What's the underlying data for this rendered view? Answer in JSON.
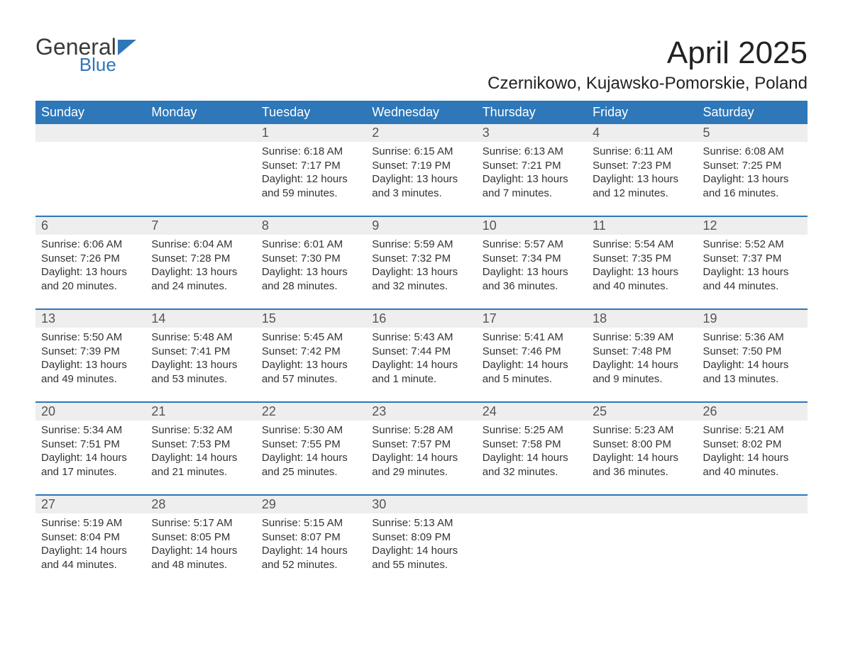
{
  "brand": {
    "general": "General",
    "blue": "Blue",
    "general_color": "#3a3a3a",
    "blue_color": "#2e77b8",
    "triangle_color": "#2e77b8"
  },
  "title": {
    "month": "April 2025",
    "location": "Czernikowo, Kujawsko-Pomorskie, Poland",
    "month_fontsize": 44,
    "location_fontsize": 24,
    "color": "#222222"
  },
  "colors": {
    "header_bg": "#2e77b8",
    "header_text": "#ffffff",
    "daynum_bg": "#eeeeee",
    "daynum_text": "#555555",
    "body_text": "#333333",
    "week_divider": "#2e77b8",
    "page_bg": "#ffffff"
  },
  "fonts": {
    "weekday_size": 18,
    "daynum_size": 18,
    "body_size": 15
  },
  "weekdays": [
    "Sunday",
    "Monday",
    "Tuesday",
    "Wednesday",
    "Thursday",
    "Friday",
    "Saturday"
  ],
  "weeks": [
    {
      "days": [
        {
          "num": "",
          "sunrise": "",
          "sunset": "",
          "daylight": ""
        },
        {
          "num": "",
          "sunrise": "",
          "sunset": "",
          "daylight": ""
        },
        {
          "num": "1",
          "sunrise": "Sunrise: 6:18 AM",
          "sunset": "Sunset: 7:17 PM",
          "daylight": "Daylight: 12 hours and 59 minutes."
        },
        {
          "num": "2",
          "sunrise": "Sunrise: 6:15 AM",
          "sunset": "Sunset: 7:19 PM",
          "daylight": "Daylight: 13 hours and 3 minutes."
        },
        {
          "num": "3",
          "sunrise": "Sunrise: 6:13 AM",
          "sunset": "Sunset: 7:21 PM",
          "daylight": "Daylight: 13 hours and 7 minutes."
        },
        {
          "num": "4",
          "sunrise": "Sunrise: 6:11 AM",
          "sunset": "Sunset: 7:23 PM",
          "daylight": "Daylight: 13 hours and 12 minutes."
        },
        {
          "num": "5",
          "sunrise": "Sunrise: 6:08 AM",
          "sunset": "Sunset: 7:25 PM",
          "daylight": "Daylight: 13 hours and 16 minutes."
        }
      ]
    },
    {
      "days": [
        {
          "num": "6",
          "sunrise": "Sunrise: 6:06 AM",
          "sunset": "Sunset: 7:26 PM",
          "daylight": "Daylight: 13 hours and 20 minutes."
        },
        {
          "num": "7",
          "sunrise": "Sunrise: 6:04 AM",
          "sunset": "Sunset: 7:28 PM",
          "daylight": "Daylight: 13 hours and 24 minutes."
        },
        {
          "num": "8",
          "sunrise": "Sunrise: 6:01 AM",
          "sunset": "Sunset: 7:30 PM",
          "daylight": "Daylight: 13 hours and 28 minutes."
        },
        {
          "num": "9",
          "sunrise": "Sunrise: 5:59 AM",
          "sunset": "Sunset: 7:32 PM",
          "daylight": "Daylight: 13 hours and 32 minutes."
        },
        {
          "num": "10",
          "sunrise": "Sunrise: 5:57 AM",
          "sunset": "Sunset: 7:34 PM",
          "daylight": "Daylight: 13 hours and 36 minutes."
        },
        {
          "num": "11",
          "sunrise": "Sunrise: 5:54 AM",
          "sunset": "Sunset: 7:35 PM",
          "daylight": "Daylight: 13 hours and 40 minutes."
        },
        {
          "num": "12",
          "sunrise": "Sunrise: 5:52 AM",
          "sunset": "Sunset: 7:37 PM",
          "daylight": "Daylight: 13 hours and 44 minutes."
        }
      ]
    },
    {
      "days": [
        {
          "num": "13",
          "sunrise": "Sunrise: 5:50 AM",
          "sunset": "Sunset: 7:39 PM",
          "daylight": "Daylight: 13 hours and 49 minutes."
        },
        {
          "num": "14",
          "sunrise": "Sunrise: 5:48 AM",
          "sunset": "Sunset: 7:41 PM",
          "daylight": "Daylight: 13 hours and 53 minutes."
        },
        {
          "num": "15",
          "sunrise": "Sunrise: 5:45 AM",
          "sunset": "Sunset: 7:42 PM",
          "daylight": "Daylight: 13 hours and 57 minutes."
        },
        {
          "num": "16",
          "sunrise": "Sunrise: 5:43 AM",
          "sunset": "Sunset: 7:44 PM",
          "daylight": "Daylight: 14 hours and 1 minute."
        },
        {
          "num": "17",
          "sunrise": "Sunrise: 5:41 AM",
          "sunset": "Sunset: 7:46 PM",
          "daylight": "Daylight: 14 hours and 5 minutes."
        },
        {
          "num": "18",
          "sunrise": "Sunrise: 5:39 AM",
          "sunset": "Sunset: 7:48 PM",
          "daylight": "Daylight: 14 hours and 9 minutes."
        },
        {
          "num": "19",
          "sunrise": "Sunrise: 5:36 AM",
          "sunset": "Sunset: 7:50 PM",
          "daylight": "Daylight: 14 hours and 13 minutes."
        }
      ]
    },
    {
      "days": [
        {
          "num": "20",
          "sunrise": "Sunrise: 5:34 AM",
          "sunset": "Sunset: 7:51 PM",
          "daylight": "Daylight: 14 hours and 17 minutes."
        },
        {
          "num": "21",
          "sunrise": "Sunrise: 5:32 AM",
          "sunset": "Sunset: 7:53 PM",
          "daylight": "Daylight: 14 hours and 21 minutes."
        },
        {
          "num": "22",
          "sunrise": "Sunrise: 5:30 AM",
          "sunset": "Sunset: 7:55 PM",
          "daylight": "Daylight: 14 hours and 25 minutes."
        },
        {
          "num": "23",
          "sunrise": "Sunrise: 5:28 AM",
          "sunset": "Sunset: 7:57 PM",
          "daylight": "Daylight: 14 hours and 29 minutes."
        },
        {
          "num": "24",
          "sunrise": "Sunrise: 5:25 AM",
          "sunset": "Sunset: 7:58 PM",
          "daylight": "Daylight: 14 hours and 32 minutes."
        },
        {
          "num": "25",
          "sunrise": "Sunrise: 5:23 AM",
          "sunset": "Sunset: 8:00 PM",
          "daylight": "Daylight: 14 hours and 36 minutes."
        },
        {
          "num": "26",
          "sunrise": "Sunrise: 5:21 AM",
          "sunset": "Sunset: 8:02 PM",
          "daylight": "Daylight: 14 hours and 40 minutes."
        }
      ]
    },
    {
      "days": [
        {
          "num": "27",
          "sunrise": "Sunrise: 5:19 AM",
          "sunset": "Sunset: 8:04 PM",
          "daylight": "Daylight: 14 hours and 44 minutes."
        },
        {
          "num": "28",
          "sunrise": "Sunrise: 5:17 AM",
          "sunset": "Sunset: 8:05 PM",
          "daylight": "Daylight: 14 hours and 48 minutes."
        },
        {
          "num": "29",
          "sunrise": "Sunrise: 5:15 AM",
          "sunset": "Sunset: 8:07 PM",
          "daylight": "Daylight: 14 hours and 52 minutes."
        },
        {
          "num": "30",
          "sunrise": "Sunrise: 5:13 AM",
          "sunset": "Sunset: 8:09 PM",
          "daylight": "Daylight: 14 hours and 55 minutes."
        },
        {
          "num": "",
          "sunrise": "",
          "sunset": "",
          "daylight": ""
        },
        {
          "num": "",
          "sunrise": "",
          "sunset": "",
          "daylight": ""
        },
        {
          "num": "",
          "sunrise": "",
          "sunset": "",
          "daylight": ""
        }
      ]
    }
  ]
}
